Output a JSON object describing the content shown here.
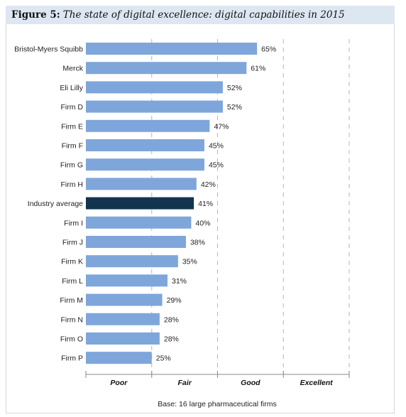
{
  "figure": {
    "label": "Figure 5:",
    "title": "The state of digital excellence: digital capabilities in 2015"
  },
  "chart_data": {
    "type": "bar",
    "orientation": "horizontal",
    "categories": [
      "Bristol-Myers Squibb",
      "Merck",
      "Eli Lilly",
      "Firm D",
      "Firm E",
      "Firm F",
      "Firm G",
      "Firm H",
      "Industry average",
      "Firm I",
      "Firm J",
      "Firm K",
      "Firm L",
      "Firm M",
      "Firm N",
      "Firm O",
      "Firm P"
    ],
    "values": [
      65,
      61,
      52,
      52,
      47,
      45,
      45,
      42,
      41,
      40,
      38,
      35,
      31,
      29,
      28,
      28,
      25
    ],
    "value_labels": [
      "65%",
      "61%",
      "52%",
      "52%",
      "47%",
      "45%",
      "45%",
      "42%",
      "41%",
      "40%",
      "38%",
      "35%",
      "31%",
      "29%",
      "28%",
      "28%",
      "25%"
    ],
    "highlight_category": "Industry average",
    "xlim": [
      0,
      100
    ],
    "bands": [
      "Poor",
      "Fair",
      "Good",
      "Excellent"
    ],
    "band_edges": [
      0,
      25,
      50,
      75,
      100
    ],
    "bar_color": "#7fa6db",
    "highlight_color": "#12344f",
    "footnote": "Base: 16 large pharmaceutical firms"
  }
}
